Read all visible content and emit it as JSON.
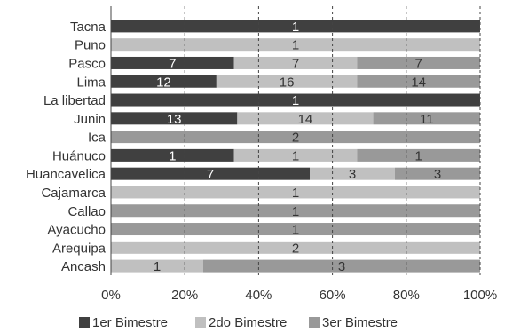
{
  "chart_data": {
    "type": "bar",
    "stacked": true,
    "normalized": true,
    "orientation": "horizontal",
    "categories": [
      "Tacna",
      "Puno",
      "Pasco",
      "Lima",
      "La libertad",
      "Junin",
      "Ica",
      "Huánuco",
      "Huancavelica",
      "Cajamarca",
      "Callao",
      "Ayacucho",
      "Arequipa",
      "Ancash"
    ],
    "series": [
      {
        "name": "1er Bimestre",
        "color": "#404040",
        "label_color": "#ffffff",
        "values": [
          1,
          0,
          7,
          12,
          1,
          13,
          0,
          1,
          7,
          0,
          0,
          0,
          0,
          0
        ]
      },
      {
        "name": "2do Bimestre",
        "color": "#c0c0c0",
        "label_color": "#333333",
        "values": [
          0,
          1,
          7,
          16,
          0,
          14,
          0,
          1,
          3,
          1,
          0,
          0,
          2,
          1
        ]
      },
      {
        "name": "3er Bimestre",
        "color": "#999999",
        "label_color": "#333333",
        "values": [
          0,
          0,
          7,
          14,
          0,
          11,
          2,
          1,
          3,
          0,
          1,
          1,
          0,
          3
        ]
      }
    ],
    "xlim": [
      0,
      100
    ],
    "x_ticks": [
      "0%",
      "20%",
      "40%",
      "60%",
      "80%",
      "100%"
    ],
    "grid": "vertical dashed",
    "legend_position": "bottom"
  }
}
